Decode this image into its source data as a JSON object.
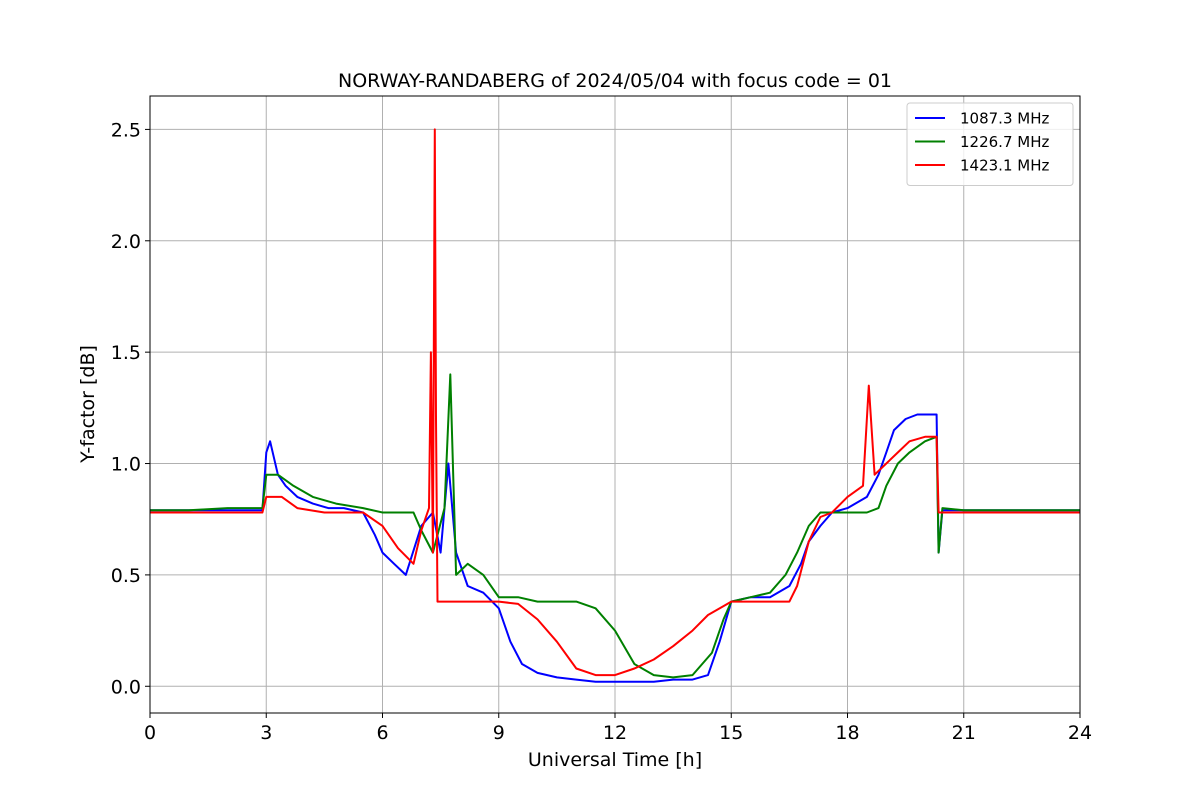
{
  "chart_data": {
    "type": "line",
    "title": "NORWAY-RANDABERG of 2024/05/04 with focus code = 01",
    "xlabel": "Universal Time [h]",
    "ylabel": "Y-factor [dB]",
    "xlim": [
      0,
      24
    ],
    "ylim": [
      -0.12,
      2.65
    ],
    "xticks": [
      0,
      3,
      6,
      9,
      12,
      15,
      18,
      21,
      24
    ],
    "xtick_labels": [
      "0",
      "3",
      "6",
      "9",
      "12",
      "15",
      "18",
      "21",
      "24"
    ],
    "yticks": [
      0.0,
      0.5,
      1.0,
      1.5,
      2.0,
      2.5
    ],
    "ytick_labels": [
      "0.0",
      "0.5",
      "1.0",
      "1.5",
      "2.0",
      "2.5"
    ],
    "grid": true,
    "legend_position": "top-right",
    "series": [
      {
        "name": "1087.3 MHz",
        "color": "#0000ff",
        "x": [
          0,
          1,
          2,
          2.9,
          3.0,
          3.1,
          3.3,
          3.5,
          3.8,
          4.2,
          4.6,
          5.0,
          5.5,
          5.8,
          6.0,
          6.3,
          6.6,
          7.0,
          7.3,
          7.5,
          7.7,
          7.9,
          8.2,
          8.6,
          9.0,
          9.3,
          9.6,
          10.0,
          10.5,
          11.0,
          11.5,
          12.0,
          12.5,
          13.0,
          13.5,
          14.0,
          14.4,
          14.7,
          15.0,
          15.5,
          16.0,
          16.5,
          16.8,
          17.0,
          17.3,
          17.6,
          18.0,
          18.5,
          18.8,
          19.0,
          19.2,
          19.5,
          19.8,
          20.0,
          20.3,
          20.35,
          20.45,
          21.0,
          22.0,
          23.0,
          24.0
        ],
        "y": [
          0.79,
          0.79,
          0.79,
          0.79,
          1.05,
          1.1,
          0.95,
          0.9,
          0.85,
          0.82,
          0.8,
          0.8,
          0.78,
          0.68,
          0.6,
          0.55,
          0.5,
          0.72,
          0.78,
          0.6,
          1.0,
          0.6,
          0.45,
          0.42,
          0.35,
          0.2,
          0.1,
          0.06,
          0.04,
          0.03,
          0.02,
          0.02,
          0.02,
          0.02,
          0.03,
          0.03,
          0.05,
          0.2,
          0.38,
          0.4,
          0.4,
          0.45,
          0.55,
          0.65,
          0.72,
          0.78,
          0.8,
          0.85,
          0.95,
          1.05,
          1.15,
          1.2,
          1.22,
          1.22,
          1.22,
          0.6,
          0.79,
          0.79,
          0.79,
          0.79,
          0.79
        ]
      },
      {
        "name": "1226.7 MHz",
        "color": "#008000",
        "x": [
          0,
          1,
          2,
          2.9,
          3.0,
          3.3,
          3.7,
          4.2,
          4.8,
          5.5,
          6.0,
          6.2,
          6.5,
          6.8,
          7.0,
          7.3,
          7.6,
          7.75,
          7.9,
          8.2,
          8.6,
          9.0,
          9.5,
          10.0,
          10.5,
          11.0,
          11.5,
          12.0,
          12.5,
          13.0,
          13.5,
          14.0,
          14.5,
          14.8,
          15.0,
          15.5,
          16.0,
          16.4,
          16.7,
          17.0,
          17.3,
          17.6,
          18.0,
          18.5,
          18.8,
          19.0,
          19.3,
          19.6,
          20.0,
          20.3,
          20.35,
          20.45,
          21.0,
          22.0,
          23.0,
          24.0
        ],
        "y": [
          0.79,
          0.79,
          0.8,
          0.8,
          0.95,
          0.95,
          0.9,
          0.85,
          0.82,
          0.8,
          0.78,
          0.78,
          0.78,
          0.78,
          0.7,
          0.6,
          0.8,
          1.4,
          0.5,
          0.55,
          0.5,
          0.4,
          0.4,
          0.38,
          0.38,
          0.38,
          0.35,
          0.25,
          0.1,
          0.05,
          0.04,
          0.05,
          0.15,
          0.3,
          0.38,
          0.4,
          0.42,
          0.5,
          0.6,
          0.72,
          0.78,
          0.78,
          0.78,
          0.78,
          0.8,
          0.9,
          1.0,
          1.05,
          1.1,
          1.12,
          0.6,
          0.8,
          0.79,
          0.79,
          0.79,
          0.79
        ]
      },
      {
        "name": "1423.1 MHz",
        "color": "#ff0000",
        "x": [
          0,
          1,
          2,
          2.9,
          3.0,
          3.4,
          3.8,
          4.5,
          5.5,
          6.0,
          6.4,
          6.8,
          7.0,
          7.2,
          7.25,
          7.3,
          7.35,
          7.38,
          7.42,
          7.5,
          7.8,
          8.2,
          8.6,
          9.0,
          9.5,
          10.0,
          10.5,
          11.0,
          11.5,
          12.0,
          12.5,
          13.0,
          13.5,
          14.0,
          14.4,
          14.8,
          15.0,
          15.5,
          16.0,
          16.5,
          16.7,
          17.0,
          17.3,
          17.6,
          18.0,
          18.4,
          18.55,
          18.7,
          19.0,
          19.3,
          19.6,
          20.0,
          20.3,
          20.35,
          21.0,
          22.0,
          23.0,
          24.0
        ],
        "y": [
          0.78,
          0.78,
          0.78,
          0.78,
          0.85,
          0.85,
          0.8,
          0.78,
          0.78,
          0.72,
          0.62,
          0.55,
          0.7,
          0.8,
          1.5,
          0.6,
          2.5,
          1.2,
          0.38,
          0.38,
          0.38,
          0.38,
          0.38,
          0.38,
          0.37,
          0.3,
          0.2,
          0.08,
          0.05,
          0.05,
          0.08,
          0.12,
          0.18,
          0.25,
          0.32,
          0.36,
          0.38,
          0.38,
          0.38,
          0.38,
          0.45,
          0.65,
          0.76,
          0.78,
          0.85,
          0.9,
          1.35,
          0.95,
          1.0,
          1.05,
          1.1,
          1.12,
          1.12,
          0.78,
          0.78,
          0.78,
          0.78,
          0.78
        ]
      }
    ]
  }
}
